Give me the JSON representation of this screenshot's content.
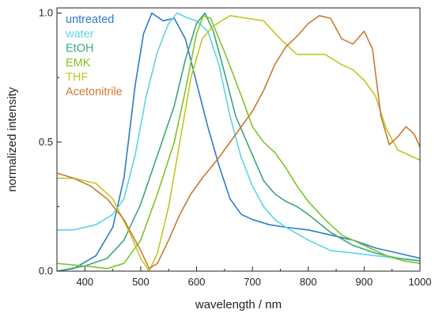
{
  "chart_data": {
    "type": "line",
    "xlabel": "wavelength / nm",
    "ylabel": "normalized intensity",
    "xlim": [
      350,
      1000
    ],
    "ylim": [
      0,
      1.02
    ],
    "x_ticks": [
      400,
      500,
      600,
      700,
      800,
      900,
      1000
    ],
    "x_tick_labels": [
      "400",
      "500",
      "600",
      "700",
      "800",
      "900",
      "1000"
    ],
    "y_ticks": [
      0,
      0.5,
      1.0
    ],
    "y_tick_labels": [
      "0.0",
      "0.5",
      "1.0"
    ],
    "grid": false,
    "legend_position": "top-left",
    "series": [
      {
        "name": "untreated",
        "color": "#2e7bc4",
        "points": [
          [
            350,
            0.0
          ],
          [
            380,
            0.01
          ],
          [
            420,
            0.06
          ],
          [
            450,
            0.17
          ],
          [
            470,
            0.36
          ],
          [
            490,
            0.72
          ],
          [
            505,
            0.92
          ],
          [
            520,
            1.0
          ],
          [
            540,
            0.97
          ],
          [
            560,
            0.98
          ],
          [
            580,
            0.9
          ],
          [
            600,
            0.73
          ],
          [
            620,
            0.56
          ],
          [
            640,
            0.41
          ],
          [
            660,
            0.28
          ],
          [
            680,
            0.22
          ],
          [
            700,
            0.2
          ],
          [
            730,
            0.18
          ],
          [
            760,
            0.17
          ],
          [
            800,
            0.16
          ],
          [
            840,
            0.14
          ],
          [
            880,
            0.12
          ],
          [
            920,
            0.09
          ],
          [
            960,
            0.07
          ],
          [
            1000,
            0.05
          ]
        ]
      },
      {
        "name": "water",
        "color": "#5dd3ea",
        "points": [
          [
            350,
            0.16
          ],
          [
            380,
            0.16
          ],
          [
            420,
            0.18
          ],
          [
            450,
            0.22
          ],
          [
            470,
            0.28
          ],
          [
            490,
            0.45
          ],
          [
            510,
            0.68
          ],
          [
            530,
            0.85
          ],
          [
            550,
            0.96
          ],
          [
            565,
            1.0
          ],
          [
            585,
            0.98
          ],
          [
            600,
            0.97
          ],
          [
            620,
            0.93
          ],
          [
            640,
            0.8
          ],
          [
            660,
            0.6
          ],
          [
            680,
            0.44
          ],
          [
            700,
            0.33
          ],
          [
            720,
            0.25
          ],
          [
            740,
            0.2
          ],
          [
            760,
            0.17
          ],
          [
            800,
            0.12
          ],
          [
            840,
            0.08
          ],
          [
            880,
            0.07
          ],
          [
            920,
            0.06
          ],
          [
            960,
            0.05
          ],
          [
            1000,
            0.04
          ]
        ]
      },
      {
        "name": "EtOH",
        "color": "#38a77a",
        "points": [
          [
            350,
            0.0
          ],
          [
            400,
            0.02
          ],
          [
            440,
            0.05
          ],
          [
            470,
            0.12
          ],
          [
            500,
            0.26
          ],
          [
            530,
            0.45
          ],
          [
            560,
            0.64
          ],
          [
            580,
            0.82
          ],
          [
            600,
            0.96
          ],
          [
            615,
            1.0
          ],
          [
            630,
            0.93
          ],
          [
            650,
            0.77
          ],
          [
            670,
            0.6
          ],
          [
            700,
            0.45
          ],
          [
            720,
            0.35
          ],
          [
            740,
            0.3
          ],
          [
            760,
            0.27
          ],
          [
            780,
            0.25
          ],
          [
            800,
            0.22
          ],
          [
            840,
            0.15
          ],
          [
            880,
            0.1
          ],
          [
            920,
            0.07
          ],
          [
            960,
            0.05
          ],
          [
            1000,
            0.04
          ]
        ]
      },
      {
        "name": "EMK",
        "color": "#7cc429",
        "points": [
          [
            350,
            0.03
          ],
          [
            400,
            0.02
          ],
          [
            440,
            0.01
          ],
          [
            470,
            0.03
          ],
          [
            500,
            0.12
          ],
          [
            530,
            0.3
          ],
          [
            560,
            0.5
          ],
          [
            580,
            0.7
          ],
          [
            600,
            0.92
          ],
          [
            612,
            0.99
          ],
          [
            625,
            0.98
          ],
          [
            650,
            0.85
          ],
          [
            680,
            0.68
          ],
          [
            700,
            0.56
          ],
          [
            720,
            0.5
          ],
          [
            740,
            0.46
          ],
          [
            760,
            0.4
          ],
          [
            780,
            0.33
          ],
          [
            800,
            0.27
          ],
          [
            830,
            0.2
          ],
          [
            860,
            0.14
          ],
          [
            900,
            0.1
          ],
          [
            940,
            0.06
          ],
          [
            970,
            0.04
          ],
          [
            1000,
            0.03
          ]
        ]
      },
      {
        "name": "THF",
        "color": "#c2c622",
        "points": [
          [
            350,
            0.36
          ],
          [
            380,
            0.36
          ],
          [
            420,
            0.34
          ],
          [
            450,
            0.28
          ],
          [
            480,
            0.15
          ],
          [
            500,
            0.05
          ],
          [
            515,
            0.0
          ],
          [
            530,
            0.07
          ],
          [
            550,
            0.25
          ],
          [
            570,
            0.5
          ],
          [
            590,
            0.75
          ],
          [
            610,
            0.9
          ],
          [
            630,
            0.95
          ],
          [
            660,
            0.99
          ],
          [
            690,
            0.98
          ],
          [
            720,
            0.97
          ],
          [
            750,
            0.9
          ],
          [
            780,
            0.84
          ],
          [
            800,
            0.84
          ],
          [
            830,
            0.84
          ],
          [
            860,
            0.8
          ],
          [
            880,
            0.78
          ],
          [
            900,
            0.74
          ],
          [
            920,
            0.68
          ],
          [
            940,
            0.55
          ],
          [
            960,
            0.47
          ],
          [
            980,
            0.45
          ],
          [
            1000,
            0.43
          ]
        ]
      },
      {
        "name": "Acetonitrile",
        "color": "#c97a2e",
        "points": [
          [
            350,
            0.38
          ],
          [
            380,
            0.36
          ],
          [
            410,
            0.33
          ],
          [
            440,
            0.28
          ],
          [
            470,
            0.2
          ],
          [
            500,
            0.08
          ],
          [
            515,
            0.01
          ],
          [
            530,
            0.03
          ],
          [
            550,
            0.12
          ],
          [
            570,
            0.22
          ],
          [
            590,
            0.3
          ],
          [
            610,
            0.36
          ],
          [
            640,
            0.44
          ],
          [
            670,
            0.53
          ],
          [
            700,
            0.62
          ],
          [
            720,
            0.7
          ],
          [
            740,
            0.8
          ],
          [
            760,
            0.87
          ],
          [
            780,
            0.91
          ],
          [
            800,
            0.96
          ],
          [
            820,
            0.99
          ],
          [
            840,
            0.98
          ],
          [
            860,
            0.9
          ],
          [
            880,
            0.88
          ],
          [
            900,
            0.93
          ],
          [
            915,
            0.86
          ],
          [
            930,
            0.6
          ],
          [
            945,
            0.49
          ],
          [
            960,
            0.52
          ],
          [
            975,
            0.56
          ],
          [
            990,
            0.53
          ],
          [
            1000,
            0.48
          ]
        ]
      }
    ]
  }
}
